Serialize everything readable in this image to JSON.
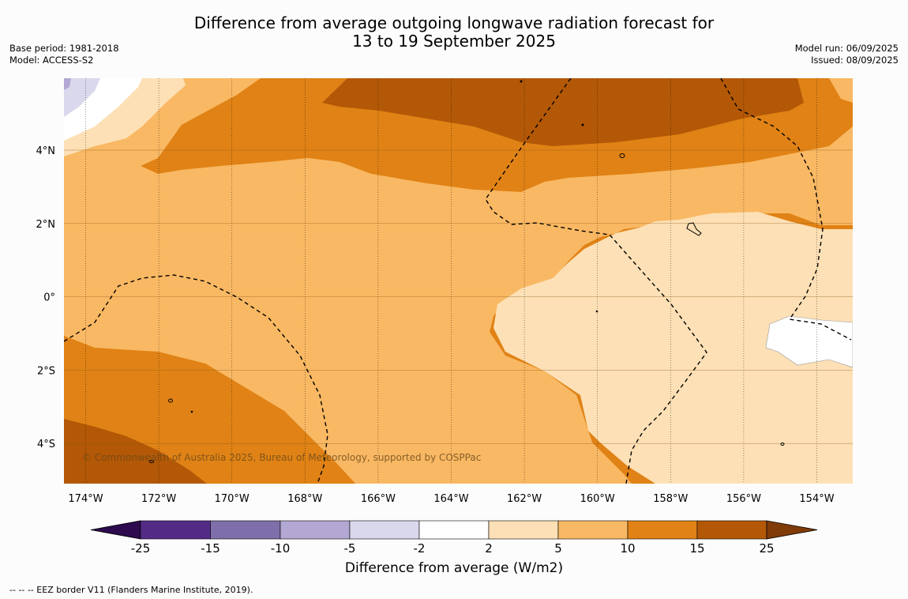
{
  "title": {
    "line1": "Difference from average outgoing longwave radiation forecast for",
    "line2": "13 to 19 September 2025"
  },
  "meta_left": {
    "base_period": "Base period: 1981-2018",
    "model": "Model: ACCESS-S2"
  },
  "meta_right": {
    "model_run": "Model run: 06/09/2025",
    "issued": "Issued: 08/09/2025"
  },
  "map": {
    "lon_ticks": [
      "174°W",
      "172°W",
      "170°W",
      "168°W",
      "166°W",
      "164°W",
      "162°W",
      "160°W",
      "158°W",
      "156°W",
      "154°W"
    ],
    "lat_ticks": [
      "4°N",
      "2°N",
      "0°",
      "2°S",
      "4°S"
    ],
    "copyright": "© Commonwealth of Australia 2025, Bureau of Meteorology, supported by COSPPac"
  },
  "colorbar": {
    "ticks": [
      "-25",
      "-15",
      "-10",
      "-5",
      "-2",
      "2",
      "5",
      "10",
      "15",
      "25"
    ],
    "colors": [
      "#2d0b4e",
      "#532b87",
      "#7e6faa",
      "#b3a8d3",
      "#d9d8ec",
      "#ffffff",
      "#fde0b5",
      "#f9b863",
      "#e08215",
      "#b35806",
      "#7f3b08"
    ],
    "title": "Difference from average (W/m2)"
  },
  "footer": "--  --  -- EEZ border V11 (Flanders Marine Institute, 2019)."
}
